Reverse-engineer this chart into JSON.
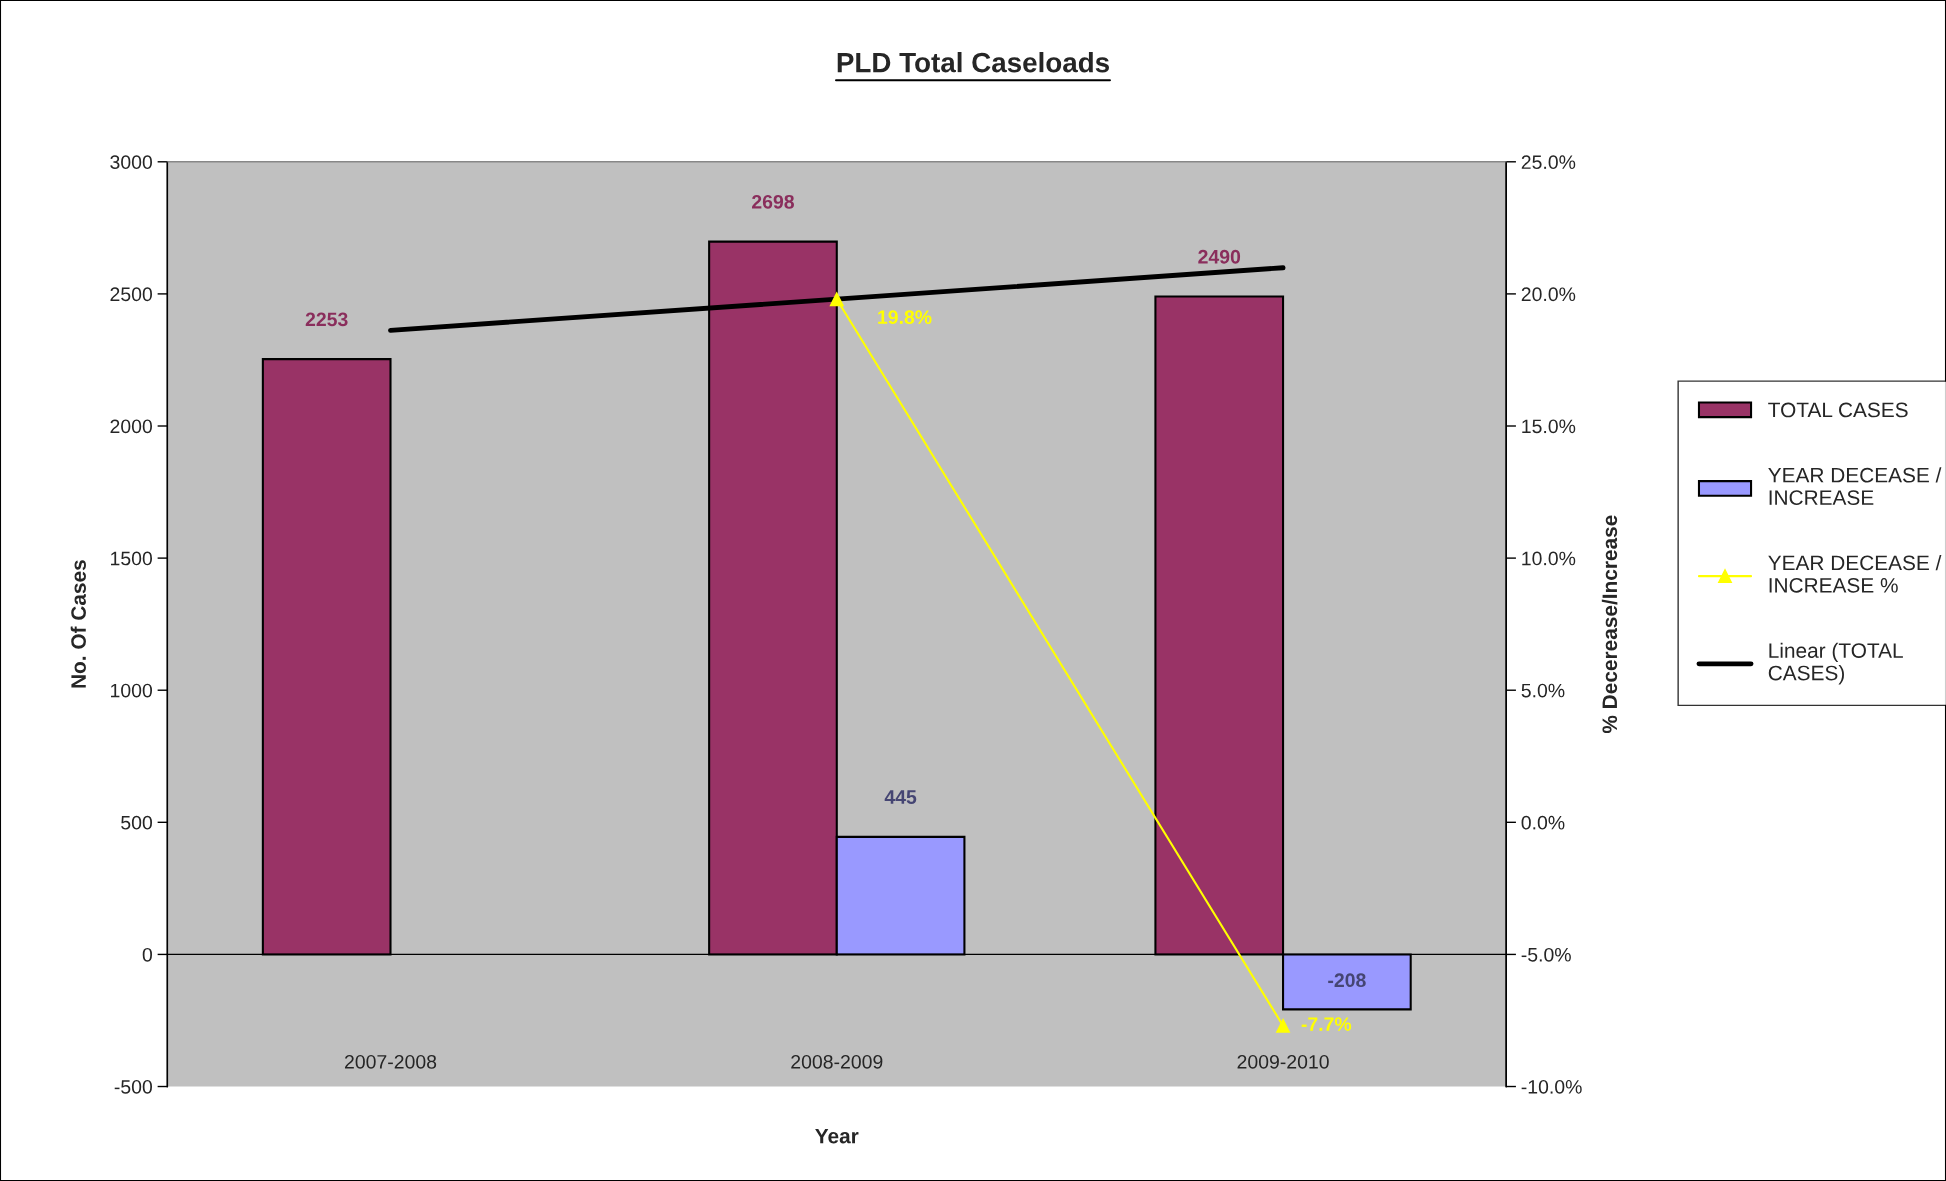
{
  "chart_data": {
    "type": "bar",
    "title": "PLD Total Caseloads",
    "xlabel": "Year",
    "ylabel": "No. Of Cases",
    "y2label": "% Decerease/Increase",
    "categories": [
      "2007-2008",
      "2008-2009",
      "2009-2010"
    ],
    "series": [
      {
        "name": "TOTAL CASES",
        "color": "#993366",
        "values": [
          2253,
          2698,
          2490
        ],
        "value_labels": [
          "2253",
          "2698",
          "2490"
        ]
      },
      {
        "name": "YEAR DECEASE / INCREASE",
        "color": "#9999ff",
        "values": [
          null,
          445,
          -208
        ],
        "value_labels": [
          null,
          "445",
          "-208"
        ]
      },
      {
        "name": "YEAR DECEASE / INCREASE %",
        "type": "line",
        "axis": "y2",
        "color": "#ffff00",
        "marker": "triangle",
        "values": [
          null,
          19.8,
          -7.7
        ],
        "value_labels": [
          null,
          "19.8%",
          "-7.7%"
        ]
      },
      {
        "name": "Linear (TOTAL CASES)",
        "type": "line",
        "color": "#000000",
        "marker": "none",
        "values": [
          2362,
          2480,
          2599
        ]
      }
    ],
    "ylim": [
      -500,
      3000
    ],
    "yticks": [
      -500,
      0,
      500,
      1000,
      1500,
      2000,
      2500,
      3000
    ],
    "y2lim": [
      -10,
      25
    ],
    "y2ticks": [
      {
        "value": -10,
        "label": "-10.0%"
      },
      {
        "value": -5,
        "label": "-5.0%"
      },
      {
        "value": 0,
        "label": "0.0%"
      },
      {
        "value": 5,
        "label": "5.0%"
      },
      {
        "value": 10,
        "label": "10.0%"
      },
      {
        "value": 15,
        "label": "15.0%"
      },
      {
        "value": 20,
        "label": "20.0%"
      },
      {
        "value": 25,
        "label": "25.0%"
      }
    ],
    "legend": "right"
  }
}
